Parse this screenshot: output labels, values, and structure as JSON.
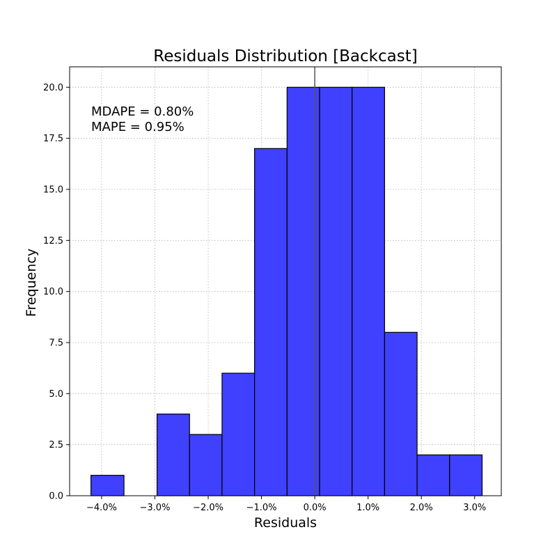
{
  "chart_data": {
    "type": "bar",
    "title": "Residuals Distribution [Backcast]",
    "xlabel": "Residuals",
    "ylabel": "Frequency",
    "xlim": [
      -4.6,
      3.5
    ],
    "ylim": [
      0,
      21
    ],
    "grid": true,
    "bins": [
      {
        "x0": -4.2,
        "x1": -3.58,
        "count": 1
      },
      {
        "x0": -3.58,
        "x1": -2.96,
        "count": 0
      },
      {
        "x0": -2.96,
        "x1": -2.35,
        "count": 4
      },
      {
        "x0": -2.35,
        "x1": -1.74,
        "count": 3
      },
      {
        "x0": -1.74,
        "x1": -1.13,
        "count": 6
      },
      {
        "x0": -1.13,
        "x1": -0.52,
        "count": 17
      },
      {
        "x0": -0.52,
        "x1": 0.09,
        "count": 20
      },
      {
        "x0": 0.09,
        "x1": 0.7,
        "count": 20
      },
      {
        "x0": 0.7,
        "x1": 1.31,
        "count": 20
      },
      {
        "x0": 1.31,
        "x1": 1.92,
        "count": 8
      },
      {
        "x0": 1.92,
        "x1": 2.53,
        "count": 2
      },
      {
        "x0": 2.53,
        "x1": 3.14,
        "count": 2
      }
    ],
    "vline_x": 0.0,
    "x_ticks": [
      {
        "value": -4.0,
        "label": "−4.0%"
      },
      {
        "value": -3.0,
        "label": "−3.0%"
      },
      {
        "value": -2.0,
        "label": "−2.0%"
      },
      {
        "value": -1.0,
        "label": "−1.0%"
      },
      {
        "value": 0.0,
        "label": "0.0%"
      },
      {
        "value": 1.0,
        "label": "1.0%"
      },
      {
        "value": 2.0,
        "label": "2.0%"
      },
      {
        "value": 3.0,
        "label": "3.0%"
      }
    ],
    "y_ticks": [
      {
        "value": 0,
        "label": "0.0"
      },
      {
        "value": 2.5,
        "label": "2.5"
      },
      {
        "value": 5,
        "label": "5.0"
      },
      {
        "value": 7.5,
        "label": "7.5"
      },
      {
        "value": 10,
        "label": "10.0"
      },
      {
        "value": 12.5,
        "label": "12.5"
      },
      {
        "value": 15,
        "label": "15.0"
      },
      {
        "value": 17.5,
        "label": "17.5"
      },
      {
        "value": 20,
        "label": "20.0"
      }
    ],
    "annotations": [
      "MDAPE = 0.80%",
      "MAPE = 0.95%"
    ]
  }
}
